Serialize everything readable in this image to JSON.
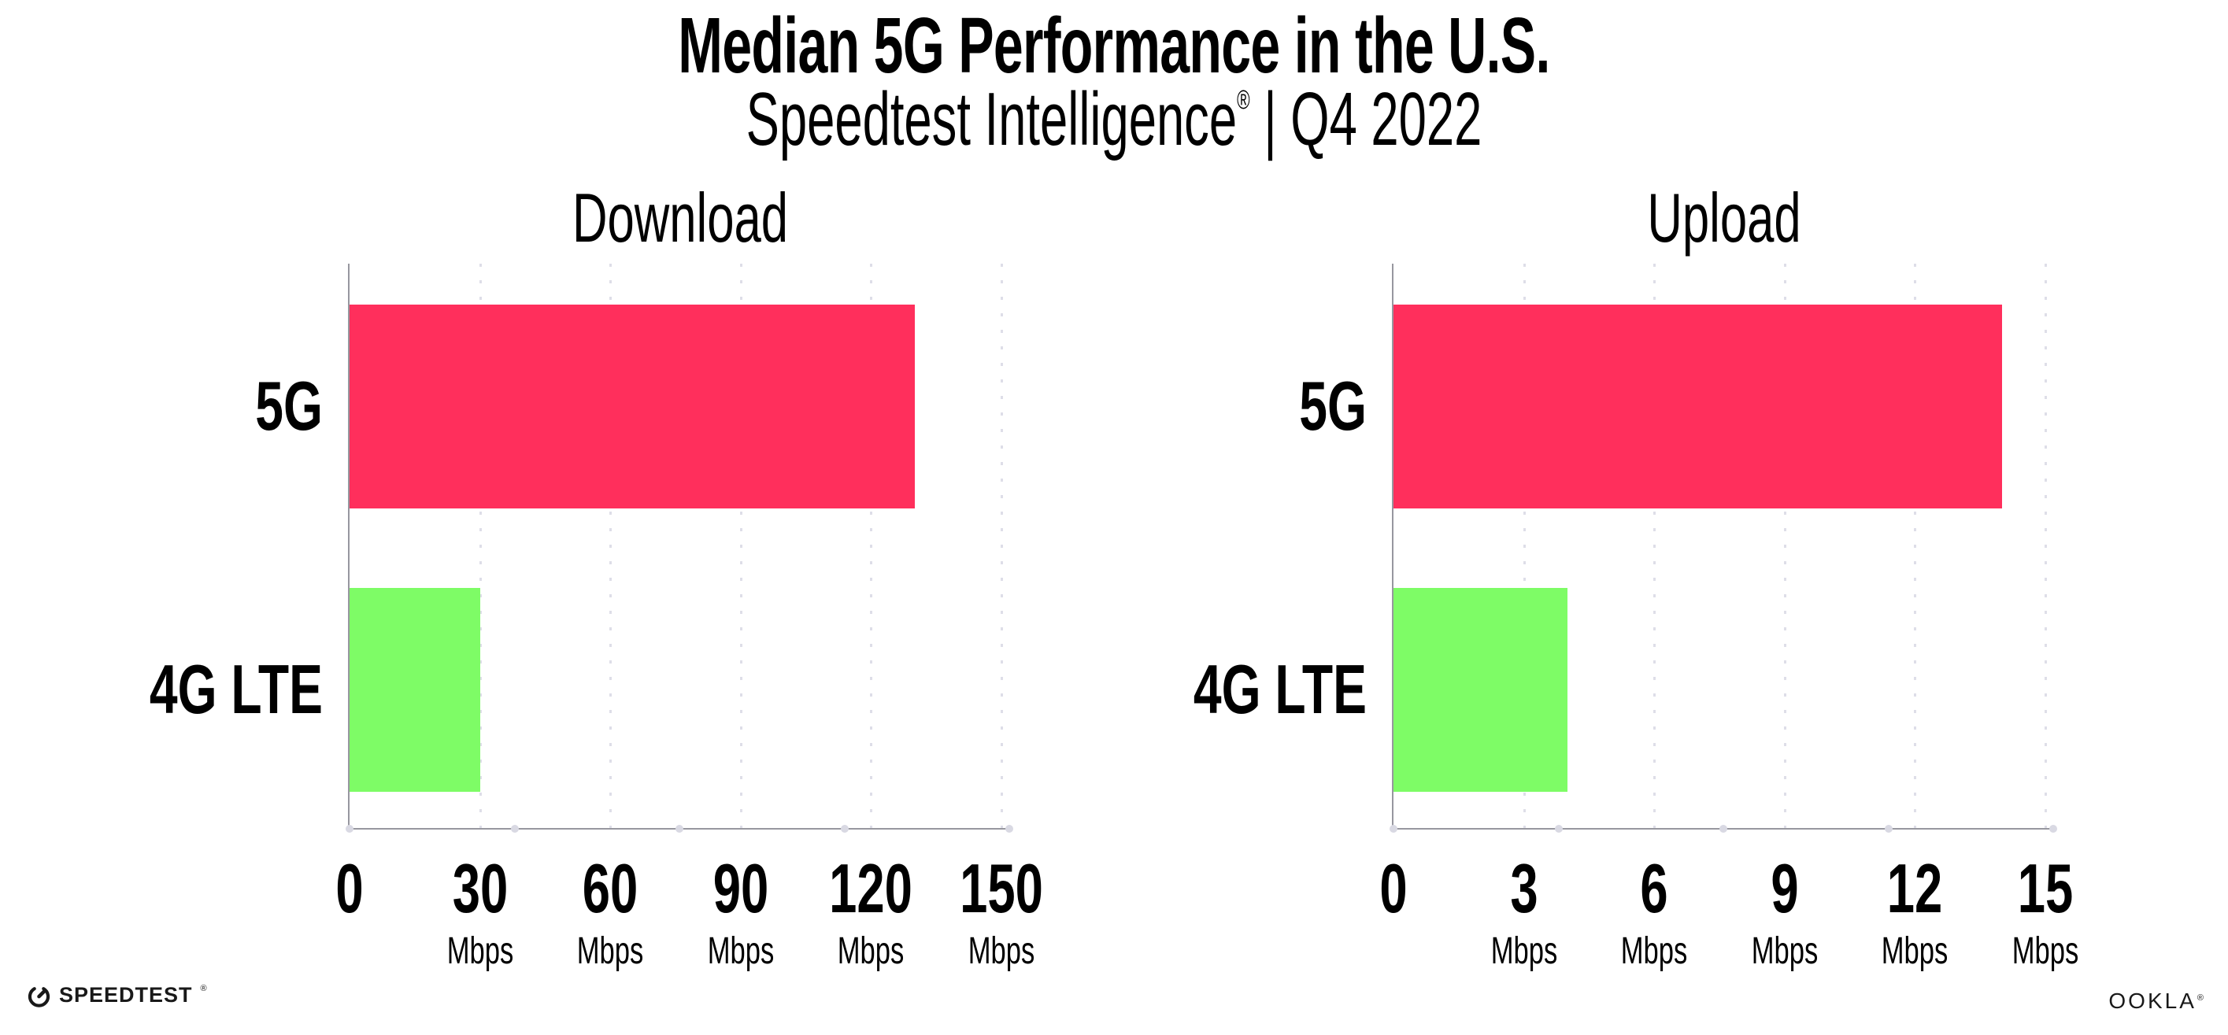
{
  "header": {
    "title": "Median 5G Performance in the U.S.",
    "subtitle_brand": "Speedtest Intelligence",
    "subtitle_mark": "®",
    "subtitle_rest": " | Q4 2022"
  },
  "chart_data": [
    {
      "type": "bar",
      "orientation": "horizontal",
      "title": "Download",
      "categories": [
        "5G",
        "4G LTE"
      ],
      "values": [
        130,
        30
      ],
      "unit": "Mbps",
      "xlim": [
        0,
        150
      ],
      "xticks": [
        0,
        30,
        60,
        90,
        120,
        150
      ],
      "colors": [
        "#FF2F5C",
        "#7EFC66"
      ],
      "grid": "dotted vertical gridlines, legend none"
    },
    {
      "type": "bar",
      "orientation": "horizontal",
      "title": "Upload",
      "categories": [
        "5G",
        "4G LTE"
      ],
      "values": [
        14,
        4
      ],
      "unit": "Mbps",
      "xlim": [
        0,
        15
      ],
      "xticks": [
        0,
        3,
        6,
        9,
        12,
        15
      ],
      "colors": [
        "#FF2F5C",
        "#7EFC66"
      ],
      "grid": "dotted vertical gridlines, legend none"
    }
  ],
  "footer": {
    "speedtest_wordmark": "SPEEDTEST",
    "speedtest_mark": "®",
    "ookla_wordmark": "OOKLA",
    "ookla_mark": "®"
  },
  "colors": {
    "bar_5g": "#FF2F5C",
    "bar_4g_lte": "#7EFC66",
    "axis_line": "#97979F",
    "gridline_dots": "#DEDEE8",
    "axis_tick_dots": "#D9D9E3",
    "text": "#000000",
    "logo": "#191919"
  }
}
